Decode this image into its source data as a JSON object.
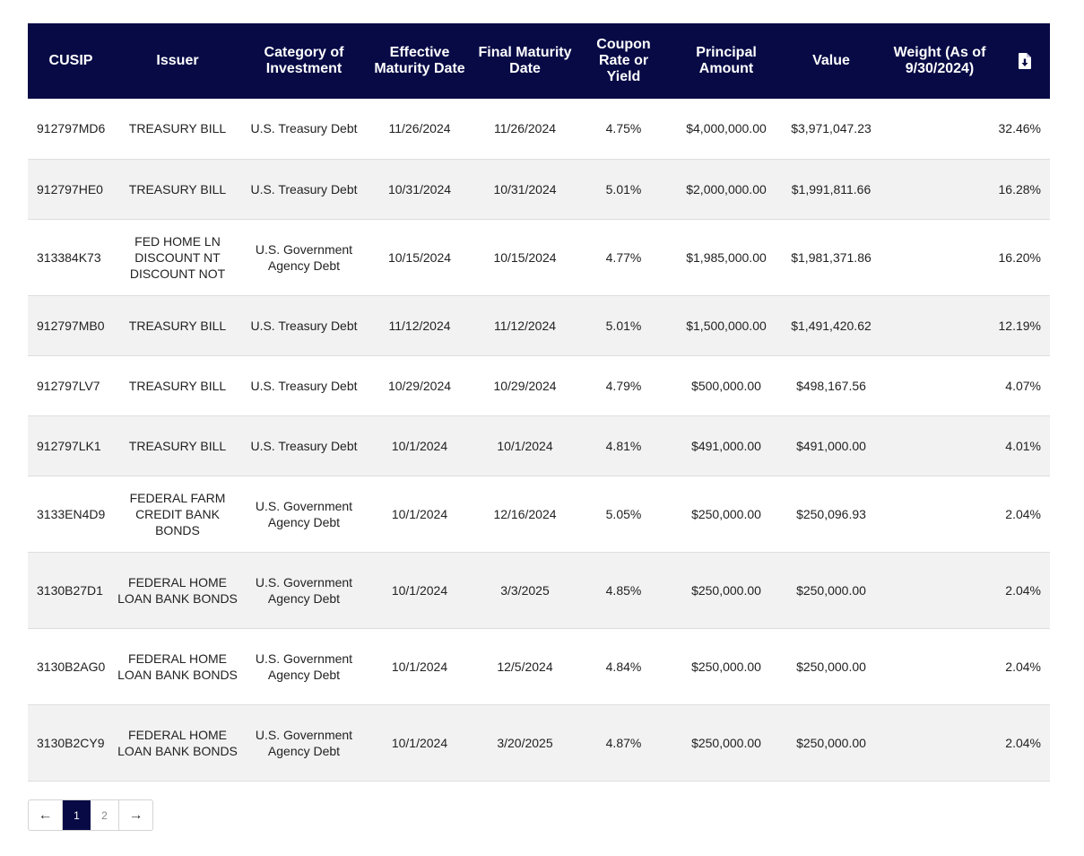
{
  "table": {
    "headers": {
      "cusip": "CUSIP",
      "issuer": "Issuer",
      "category": "Category of Investment",
      "effective_maturity": "Effective Maturity Date",
      "final_maturity": "Final Maturity Date",
      "coupon": "Coupon Rate or Yield",
      "principal": "Principal Amount",
      "value": "Value",
      "weight": "Weight (As of 9/30/2024)",
      "download_icon": "file-download-icon"
    },
    "rows": [
      {
        "cusip": "912797MD6",
        "issuer": "TREASURY BILL",
        "category": "U.S. Treasury Debt",
        "effective_maturity": "11/26/2024",
        "final_maturity": "11/26/2024",
        "coupon": "4.75%",
        "principal": "$4,000,000.00",
        "value": "$3,971,047.23",
        "weight": "32.46%"
      },
      {
        "cusip": "912797HE0",
        "issuer": "TREASURY BILL",
        "category": "U.S. Treasury Debt",
        "effective_maturity": "10/31/2024",
        "final_maturity": "10/31/2024",
        "coupon": "5.01%",
        "principal": "$2,000,000.00",
        "value": "$1,991,811.66",
        "weight": "16.28%"
      },
      {
        "cusip": "313384K73",
        "issuer": "FED HOME LN DISCOUNT NT DISCOUNT NOT",
        "category": "U.S. Government Agency Debt",
        "effective_maturity": "10/15/2024",
        "final_maturity": "10/15/2024",
        "coupon": "4.77%",
        "principal": "$1,985,000.00",
        "value": "$1,981,371.86",
        "weight": "16.20%"
      },
      {
        "cusip": "912797MB0",
        "issuer": "TREASURY BILL",
        "category": "U.S. Treasury Debt",
        "effective_maturity": "11/12/2024",
        "final_maturity": "11/12/2024",
        "coupon": "5.01%",
        "principal": "$1,500,000.00",
        "value": "$1,491,420.62",
        "weight": "12.19%"
      },
      {
        "cusip": "912797LV7",
        "issuer": "TREASURY BILL",
        "category": "U.S. Treasury Debt",
        "effective_maturity": "10/29/2024",
        "final_maturity": "10/29/2024",
        "coupon": "4.79%",
        "principal": "$500,000.00",
        "value": "$498,167.56",
        "weight": "4.07%"
      },
      {
        "cusip": "912797LK1",
        "issuer": "TREASURY BILL",
        "category": "U.S. Treasury Debt",
        "effective_maturity": "10/1/2024",
        "final_maturity": "10/1/2024",
        "coupon": "4.81%",
        "principal": "$491,000.00",
        "value": "$491,000.00",
        "weight": "4.01%"
      },
      {
        "cusip": "3133EN4D9",
        "issuer": "FEDERAL FARM CREDIT BANK BONDS",
        "category": "U.S. Government Agency Debt",
        "effective_maturity": "10/1/2024",
        "final_maturity": "12/16/2024",
        "coupon": "5.05%",
        "principal": "$250,000.00",
        "value": "$250,096.93",
        "weight": "2.04%"
      },
      {
        "cusip": "3130B27D1",
        "issuer": "FEDERAL HOME LOAN BANK BONDS",
        "category": "U.S. Government Agency Debt",
        "effective_maturity": "10/1/2024",
        "final_maturity": "3/3/2025",
        "coupon": "4.85%",
        "principal": "$250,000.00",
        "value": "$250,000.00",
        "weight": "2.04%"
      },
      {
        "cusip": "3130B2AG0",
        "issuer": "FEDERAL HOME LOAN BANK BONDS",
        "category": "U.S. Government Agency Debt",
        "effective_maturity": "10/1/2024",
        "final_maturity": "12/5/2024",
        "coupon": "4.84%",
        "principal": "$250,000.00",
        "value": "$250,000.00",
        "weight": "2.04%"
      },
      {
        "cusip": "3130B2CY9",
        "issuer": "FEDERAL HOME LOAN BANK BONDS",
        "category": "U.S. Government Agency Debt",
        "effective_maturity": "10/1/2024",
        "final_maturity": "3/20/2025",
        "coupon": "4.87%",
        "principal": "$250,000.00",
        "value": "$250,000.00",
        "weight": "2.04%"
      }
    ]
  },
  "pagination": {
    "prev_label": "←",
    "next_label": "→",
    "pages": [
      "1",
      "2"
    ],
    "current_page": "1"
  },
  "colors": {
    "header_bg": "#070a45",
    "stripe_bg": "#f2f2f2"
  }
}
